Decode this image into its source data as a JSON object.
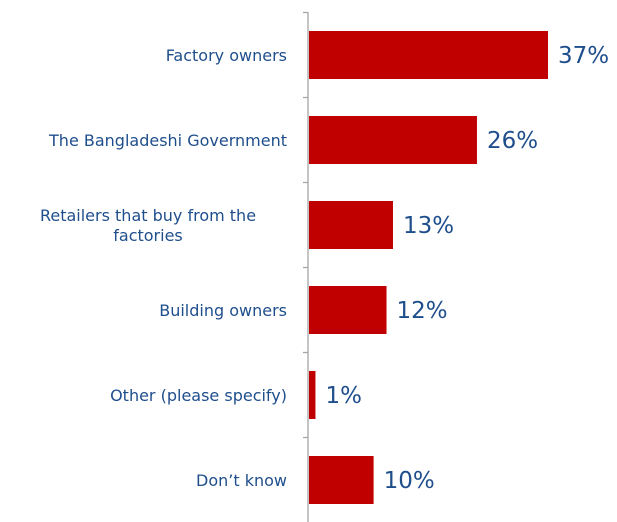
{
  "chart_data": {
    "type": "bar",
    "orientation": "horizontal",
    "title": "",
    "xlabel": "",
    "ylabel": "",
    "categories": [
      [
        "Factory owners"
      ],
      [
        "The Bangladeshi Government"
      ],
      [
        "Retailers that buy from the",
        "factories"
      ],
      [
        "Building owners"
      ],
      [
        "Other (please specify)"
      ],
      [
        "Don’t know"
      ]
    ],
    "values": [
      37,
      26,
      13,
      12,
      1,
      10
    ],
    "value_labels": [
      "37%",
      "26%",
      "13%",
      "12%",
      "1%",
      "10%"
    ],
    "unit": "%",
    "xlim": [
      0,
      38
    ],
    "grid": false,
    "legend": "none"
  },
  "colors": {
    "bar": "#c00000",
    "text": "#1f4e8c",
    "axis": "#a6a6a6"
  }
}
